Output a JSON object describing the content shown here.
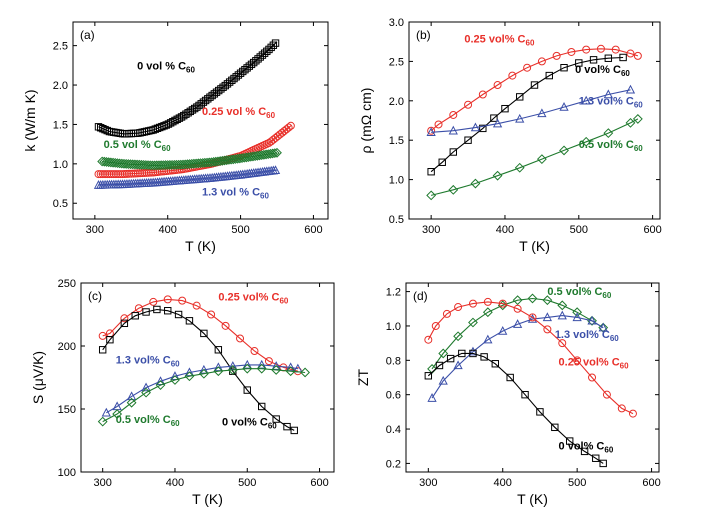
{
  "colors": {
    "black": "#000000",
    "red": "#e8302a",
    "green": "#1f7a2e",
    "blue": "#3b4fa8"
  },
  "chart_data": [
    {
      "panel_label": "(a)",
      "type": "scatter",
      "xlabel": "T (K)",
      "ylabel": "k (W/m K)",
      "xlim": [
        270,
        620
      ],
      "ylim": [
        0.3,
        2.8
      ],
      "xticks": [
        300,
        400,
        500,
        600
      ],
      "yticks": [
        0.5,
        1.0,
        1.5,
        2.0,
        2.5
      ],
      "ytick_labels": [
        "0.5",
        "1.0",
        "1.5",
        "2.0",
        "2.5"
      ],
      "marker_spacing": "dense",
      "series": [
        {
          "label": "0 vol % C",
          "sub": "60",
          "color_key": "black",
          "marker": "square",
          "x": [
            305,
            320,
            340,
            360,
            380,
            400,
            420,
            440,
            460,
            480,
            500,
            520,
            540,
            550
          ],
          "y": [
            1.47,
            1.41,
            1.38,
            1.39,
            1.43,
            1.5,
            1.6,
            1.72,
            1.86,
            2.0,
            2.15,
            2.3,
            2.46,
            2.55
          ],
          "label_x": 358,
          "label_y": 2.2
        },
        {
          "label": "0.25 vol % C",
          "sub": "60",
          "color_key": "red",
          "marker": "circle",
          "x": [
            305,
            340,
            380,
            420,
            460,
            500,
            540,
            570
          ],
          "y": [
            0.87,
            0.87,
            0.89,
            0.93,
            1.0,
            1.1,
            1.27,
            1.49
          ],
          "label_x": 447,
          "label_y": 1.62
        },
        {
          "label": "0.5 vol % C",
          "sub": "60",
          "color_key": "green",
          "marker": "diamond",
          "x": [
            310,
            340,
            380,
            420,
            460,
            500,
            550
          ],
          "y": [
            1.03,
            1.0,
            0.98,
            0.99,
            1.02,
            1.07,
            1.14
          ],
          "label_x": 312,
          "label_y": 1.2
        },
        {
          "label": "1.3 vol % C",
          "sub": "60",
          "color_key": "blue",
          "marker": "triangle",
          "x": [
            305,
            340,
            380,
            420,
            460,
            500,
            550
          ],
          "y": [
            0.73,
            0.74,
            0.76,
            0.79,
            0.82,
            0.86,
            0.92
          ],
          "label_x": 447,
          "label_y": 0.6
        }
      ]
    },
    {
      "panel_label": "(b)",
      "type": "scatter",
      "xlabel": "T (K)",
      "ylabel": "ρ (mΩ cm)",
      "xlim": [
        270,
        610
      ],
      "ylim": [
        0.5,
        3.0
      ],
      "xticks": [
        300,
        400,
        500,
        600
      ],
      "yticks": [
        0.5,
        1.0,
        1.5,
        2.0,
        2.5,
        3.0
      ],
      "ytick_labels": [
        "0.5",
        "1.0",
        "1.5",
        "2.0",
        "2.5",
        "3.0"
      ],
      "marker_spacing": "sparse",
      "series": [
        {
          "label": "0.25 vol% C",
          "sub": "60",
          "color_key": "red",
          "marker": "circle",
          "x": [
            300,
            310,
            330,
            350,
            370,
            390,
            410,
            430,
            450,
            470,
            490,
            510,
            530,
            550,
            570,
            580
          ],
          "y": [
            1.62,
            1.7,
            1.82,
            1.95,
            2.08,
            2.2,
            2.32,
            2.42,
            2.5,
            2.57,
            2.62,
            2.65,
            2.66,
            2.65,
            2.6,
            2.57
          ],
          "label_x": 345,
          "label_y": 2.74
        },
        {
          "label": "0 vol% C",
          "sub": "60",
          "color_key": "black",
          "marker": "square",
          "x": [
            300,
            315,
            330,
            350,
            370,
            385,
            400,
            420,
            440,
            460,
            480,
            500,
            520,
            540,
            560
          ],
          "y": [
            1.1,
            1.22,
            1.35,
            1.5,
            1.65,
            1.78,
            1.9,
            2.05,
            2.2,
            2.32,
            2.42,
            2.48,
            2.52,
            2.54,
            2.55
          ],
          "label_x": 495,
          "label_y": 2.35
        },
        {
          "label": "1.3 vol% C",
          "sub": "60",
          "color_key": "blue",
          "marker": "triangle",
          "x": [
            300,
            330,
            360,
            390,
            420,
            450,
            480,
            510,
            540,
            570
          ],
          "y": [
            1.6,
            1.62,
            1.66,
            1.71,
            1.77,
            1.84,
            1.92,
            2.0,
            2.08,
            2.14
          ],
          "label_x": 500,
          "label_y": 1.95
        },
        {
          "label": "0.5 vol% C",
          "sub": "60",
          "color_key": "green",
          "marker": "diamond",
          "x": [
            300,
            330,
            360,
            390,
            420,
            450,
            480,
            510,
            540,
            570,
            580
          ],
          "y": [
            0.8,
            0.87,
            0.95,
            1.05,
            1.15,
            1.26,
            1.37,
            1.48,
            1.59,
            1.72,
            1.77
          ],
          "label_x": 500,
          "label_y": 1.4
        }
      ]
    },
    {
      "panel_label": "(c)",
      "type": "scatter",
      "xlabel": "T (K)",
      "ylabel": "S (μV/K)",
      "xlim": [
        270,
        620
      ],
      "ylim": [
        100,
        250
      ],
      "xticks": [
        300,
        400,
        500,
        600
      ],
      "yticks": [
        100,
        150,
        200,
        250
      ],
      "ytick_labels": [
        "100",
        "150",
        "200",
        "250"
      ],
      "marker_spacing": "sparse",
      "series": [
        {
          "label": "0.25 vol% C",
          "sub": "60",
          "color_key": "red",
          "marker": "circle",
          "x": [
            300,
            310,
            330,
            350,
            370,
            390,
            410,
            430,
            450,
            470,
            490,
            510,
            530,
            550,
            570
          ],
          "y": [
            208,
            210,
            222,
            230,
            235,
            237,
            236,
            232,
            225,
            216,
            206,
            196,
            188,
            183,
            180
          ],
          "label_x": 460,
          "label_y": 236
        },
        {
          "label": "0 vol% C",
          "sub": "60",
          "color_key": "black",
          "marker": "square",
          "x": [
            300,
            310,
            330,
            345,
            360,
            375,
            390,
            405,
            420,
            440,
            460,
            480,
            500,
            520,
            540,
            555,
            565
          ],
          "y": [
            197,
            205,
            218,
            224,
            227,
            229,
            228,
            225,
            220,
            210,
            197,
            180,
            165,
            152,
            142,
            136,
            133
          ],
          "label_x": 465,
          "label_y": 137
        },
        {
          "label": "1.3 vol% C",
          "sub": "60",
          "color_key": "blue",
          "marker": "triangle",
          "x": [
            305,
            320,
            340,
            360,
            380,
            400,
            420,
            440,
            460,
            480,
            500,
            520,
            540,
            560,
            570
          ],
          "y": [
            147,
            152,
            160,
            167,
            172,
            176,
            179,
            181,
            183,
            184,
            185,
            185,
            184,
            183,
            182
          ],
          "label_x": 318,
          "label_y": 186
        },
        {
          "label": "0.5 vol% C",
          "sub": "60",
          "color_key": "green",
          "marker": "diamond",
          "x": [
            300,
            320,
            340,
            360,
            380,
            400,
            420,
            440,
            460,
            480,
            500,
            520,
            540,
            560,
            580
          ],
          "y": [
            140,
            146,
            155,
            163,
            169,
            173,
            176,
            178,
            180,
            181,
            182,
            182,
            181,
            180,
            179
          ],
          "label_x": 318,
          "label_y": 139
        }
      ]
    },
    {
      "panel_label": "(d)",
      "type": "scatter",
      "xlabel": "T (K)",
      "ylabel": "ZT",
      "xlim": [
        270,
        610
      ],
      "ylim": [
        0.15,
        1.25
      ],
      "xticks": [
        300,
        400,
        500,
        600
      ],
      "yticks": [
        0.2,
        0.4,
        0.6,
        0.8,
        1.0,
        1.2
      ],
      "ytick_labels": [
        "0.2",
        "0.4",
        "0.6",
        "0.8",
        "1.0",
        "1.2"
      ],
      "marker_spacing": "sparse",
      "series": [
        {
          "label": "0.5 vol% C",
          "sub": "60",
          "color_key": "green",
          "marker": "diamond",
          "x": [
            305,
            320,
            340,
            360,
            380,
            400,
            420,
            440,
            460,
            480,
            500,
            520,
            535
          ],
          "y": [
            0.75,
            0.84,
            0.94,
            1.02,
            1.08,
            1.12,
            1.15,
            1.16,
            1.15,
            1.12,
            1.08,
            1.03,
            0.99
          ],
          "label_x": 460,
          "label_y": 1.18
        },
        {
          "label": "1.3 vol% C",
          "sub": "60",
          "color_key": "blue",
          "marker": "triangle",
          "x": [
            305,
            320,
            340,
            360,
            380,
            400,
            420,
            440,
            460,
            480,
            500,
            520,
            535
          ],
          "y": [
            0.58,
            0.68,
            0.77,
            0.85,
            0.92,
            0.97,
            1.01,
            1.04,
            1.05,
            1.06,
            1.05,
            1.03,
            0.99
          ],
          "label_x": 470,
          "label_y": 0.93
        },
        {
          "label": "0.25 vol% C",
          "sub": "60",
          "color_key": "red",
          "marker": "circle",
          "x": [
            300,
            310,
            325,
            340,
            360,
            380,
            400,
            420,
            440,
            460,
            480,
            500,
            520,
            540,
            560,
            575
          ],
          "y": [
            0.92,
            1.0,
            1.07,
            1.11,
            1.13,
            1.14,
            1.13,
            1.1,
            1.05,
            0.98,
            0.9,
            0.8,
            0.7,
            0.6,
            0.52,
            0.49
          ],
          "label_x": 475,
          "label_y": 0.77
        },
        {
          "label": "0 vol% C",
          "sub": "60",
          "color_key": "black",
          "marker": "square",
          "x": [
            300,
            315,
            330,
            345,
            360,
            375,
            390,
            410,
            430,
            450,
            470,
            490,
            510,
            525,
            535
          ],
          "y": [
            0.71,
            0.77,
            0.81,
            0.84,
            0.84,
            0.82,
            0.78,
            0.7,
            0.6,
            0.5,
            0.41,
            0.33,
            0.27,
            0.23,
            0.2
          ],
          "label_x": 475,
          "label_y": 0.28
        }
      ]
    }
  ]
}
